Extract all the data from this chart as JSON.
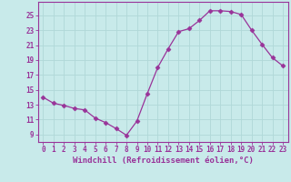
{
  "x": [
    0,
    1,
    2,
    3,
    4,
    5,
    6,
    7,
    8,
    9,
    10,
    11,
    12,
    13,
    14,
    15,
    16,
    17,
    18,
    19,
    20,
    21,
    22,
    23
  ],
  "y": [
    14.0,
    13.2,
    12.9,
    12.5,
    12.3,
    11.2,
    10.6,
    9.8,
    8.9,
    10.8,
    14.5,
    18.0,
    20.5,
    22.8,
    23.2,
    24.3,
    25.6,
    25.6,
    25.5,
    25.1,
    23.0,
    21.1,
    19.3,
    18.2
  ],
  "line_color": "#993399",
  "marker": "D",
  "marker_size": 2.5,
  "background_color": "#c8eaea",
  "grid_color": "#b0d8d8",
  "xlabel": "Windchill (Refroidissement éolien,°C)",
  "xlabel_fontsize": 6.5,
  "ytick_values": [
    9,
    11,
    13,
    15,
    17,
    19,
    21,
    23,
    25
  ],
  "ylim": [
    8.0,
    26.8
  ],
  "xlim": [
    -0.5,
    23.5
  ],
  "tick_color": "#993399",
  "tick_fontsize": 5.5,
  "spine_color": "#993399"
}
